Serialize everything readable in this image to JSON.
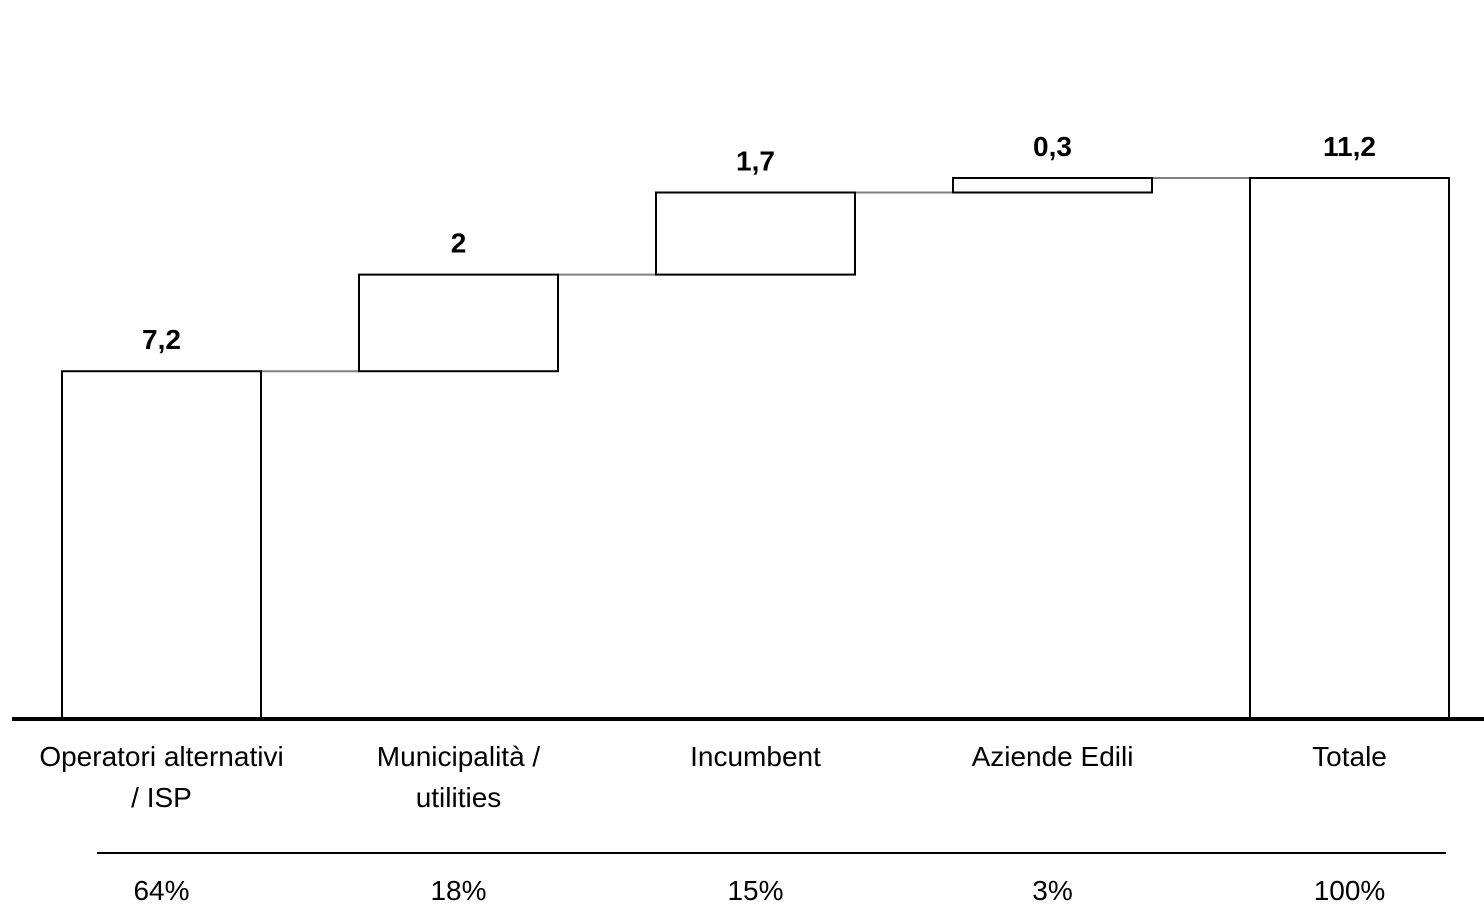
{
  "chart_data": {
    "type": "bar",
    "subtype": "waterfall",
    "categories": [
      [
        "Operatori alternativi",
        "/ ISP"
      ],
      [
        "Municipalità /",
        "utilities"
      ],
      [
        "Incumbent"
      ],
      [
        "Aziende Edili"
      ],
      [
        "Totale"
      ]
    ],
    "values": [
      7.2,
      2,
      1.7,
      0.3,
      11.2
    ],
    "value_labels": [
      "7,2",
      "2",
      "1,7",
      "0,3",
      "11,2"
    ],
    "is_total": [
      false,
      false,
      false,
      false,
      true
    ],
    "shares": [
      "64%",
      "18%",
      "15%",
      "3%",
      "100%"
    ],
    "title": "",
    "xlabel": "",
    "ylabel": "",
    "ylim": [
      0,
      11.2
    ],
    "grid": false,
    "legend": "none",
    "colors": {
      "bar_fill": "#ffffff",
      "bar_stroke": "#000000",
      "connector": "#808080",
      "axis": "#000000"
    }
  }
}
